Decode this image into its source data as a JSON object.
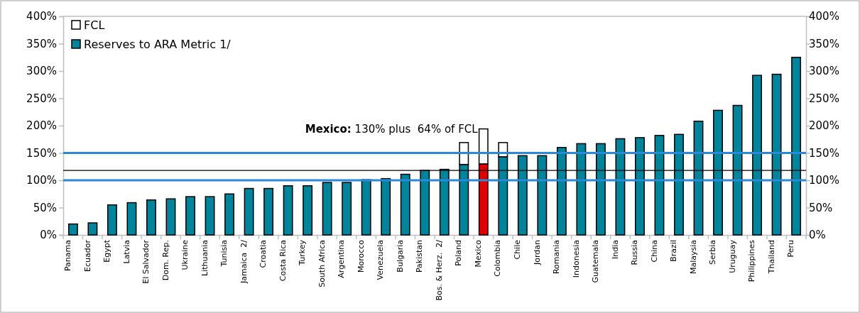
{
  "chart_data": {
    "type": "bar",
    "stacked": true,
    "categories": [
      "Panama",
      "Ecuador",
      "Egypt",
      "Latvia",
      "El Salvador",
      "Dom. Rep.",
      "Ukraine",
      "Lithuania",
      "Tunisia",
      "Jamaica  2/",
      "Croatia",
      "Costa Rica",
      "Turkey",
      "South Africa",
      "Argentina",
      "Morocco",
      "Venezuela",
      "Bulgaria",
      "Pakistan",
      "Bos. & Herz.  2/",
      "Poland",
      "Mexico",
      "Colombia",
      "Chile",
      "Jordan",
      "Romania",
      "Indonesia",
      "Guatemala",
      "India",
      "Russia",
      "China",
      "Brazil",
      "Malaysia",
      "Serbia",
      "Uruguay",
      "Philippines",
      "Thailand",
      "Peru"
    ],
    "series": [
      {
        "name": "Reserves to ARA Metric 1/",
        "color": "#00849c",
        "colors": [
          "#00849c",
          "#00849c",
          "#00849c",
          "#00849c",
          "#00849c",
          "#00849c",
          "#00849c",
          "#00849c",
          "#00849c",
          "#00849c",
          "#00849c",
          "#00849c",
          "#00849c",
          "#00849c",
          "#00849c",
          "#00849c",
          "#00849c",
          "#00849c",
          "#00849c",
          "#00849c",
          "#00849c",
          "#e00000",
          "#00849c",
          "#00849c",
          "#00849c",
          "#00849c",
          "#00849c",
          "#00849c",
          "#00849c",
          "#00849c",
          "#00849c",
          "#00849c",
          "#00849c",
          "#00849c",
          "#00849c",
          "#00849c",
          "#00849c",
          "#00849c"
        ],
        "values": [
          20,
          22,
          55,
          59,
          64,
          66,
          70,
          70,
          75,
          85,
          85,
          90,
          90,
          96,
          96,
          101,
          103,
          111,
          118,
          120,
          129,
          130,
          143,
          145,
          145,
          160,
          167,
          167,
          176,
          178,
          182,
          184,
          208,
          228,
          237,
          292,
          294,
          325
        ]
      },
      {
        "name": "FCL",
        "color": "#ffffff",
        "values": [
          null,
          null,
          null,
          null,
          null,
          null,
          null,
          null,
          null,
          null,
          null,
          null,
          null,
          null,
          null,
          null,
          null,
          null,
          null,
          null,
          40,
          64,
          26,
          null,
          null,
          null,
          null,
          null,
          null,
          null,
          null,
          null,
          null,
          null,
          null,
          null,
          null,
          null
        ]
      }
    ],
    "ylim": [
      0,
      400
    ],
    "yticks": [
      {
        "value": 0,
        "label": "0%"
      },
      {
        "value": 50,
        "label": "50%"
      },
      {
        "value": 100,
        "label": "100%"
      },
      {
        "value": 150,
        "label": "150%"
      },
      {
        "value": 200,
        "label": "200%"
      },
      {
        "value": 250,
        "label": "250%"
      },
      {
        "value": 300,
        "label": "300%"
      },
      {
        "value": 350,
        "label": "350%"
      },
      {
        "value": 400,
        "label": "400%"
      }
    ],
    "y2lim": [
      0,
      400
    ],
    "y2ticks": [
      {
        "value": 0,
        "label": "0%"
      },
      {
        "value": 50,
        "label": "50%"
      },
      {
        "value": 100,
        "label": "100%"
      },
      {
        "value": 150,
        "label": "150%"
      },
      {
        "value": 200,
        "label": "200%"
      },
      {
        "value": 250,
        "label": "250%"
      },
      {
        "value": 300,
        "label": "300%"
      },
      {
        "value": 350,
        "label": "350%"
      },
      {
        "value": 400,
        "label": "400%"
      }
    ],
    "ref_lines": [
      {
        "axis": "y",
        "value": 150,
        "color": "#2a8ad8"
      },
      {
        "axis": "y",
        "value": 100,
        "color": "#2a8ad8"
      },
      {
        "axis": "y",
        "value": 118,
        "color": "#000000"
      }
    ],
    "annotations": [
      {
        "text": "Mexico: 130% plus  64% of FCL",
        "x": "Mexico",
        "y": 194
      }
    ],
    "legend": "top left",
    "grid": false
  }
}
